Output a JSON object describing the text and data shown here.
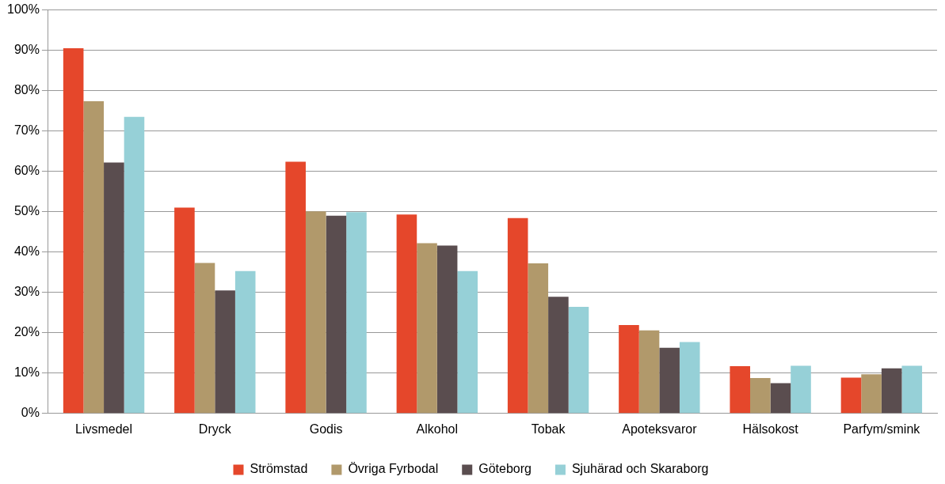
{
  "chart_data": {
    "type": "bar",
    "categories": [
      "Livsmedel",
      "Dryck",
      "Godis",
      "Alkohol",
      "Tobak",
      "Apoteksvaror",
      "Hälsokost",
      "Parfym/smink"
    ],
    "series": [
      {
        "name": "Strömstad",
        "color": "#e5472b",
        "values": [
          90.5,
          51.0,
          62.4,
          49.3,
          48.4,
          21.9,
          11.7,
          8.9
        ]
      },
      {
        "name": "Övriga Fyrbodal",
        "color": "#b1996b",
        "values": [
          77.4,
          37.3,
          50.1,
          42.2,
          37.2,
          20.6,
          8.8,
          9.7
        ]
      },
      {
        "name": "Göteborg",
        "color": "#5a4d4f",
        "values": [
          62.2,
          30.5,
          49.0,
          41.6,
          28.9,
          16.3,
          7.5,
          11.2
        ]
      },
      {
        "name": "Sjuhärad och Skaraborg",
        "color": "#96d0d7",
        "values": [
          73.5,
          35.3,
          49.9,
          35.3,
          26.4,
          17.7,
          11.8,
          11.8
        ]
      }
    ],
    "ylim": [
      0,
      100
    ],
    "yticks": [
      {
        "value": 0,
        "label": "0%"
      },
      {
        "value": 10,
        "label": "10%"
      },
      {
        "value": 20,
        "label": "20%"
      },
      {
        "value": 30,
        "label": "30%"
      },
      {
        "value": 40,
        "label": "40%"
      },
      {
        "value": 50,
        "label": "50%"
      },
      {
        "value": 60,
        "label": "60%"
      },
      {
        "value": 70,
        "label": "70%"
      },
      {
        "value": 80,
        "label": "80%"
      },
      {
        "value": 90,
        "label": "90%"
      },
      {
        "value": 100,
        "label": "100%"
      }
    ],
    "grid": "y",
    "legend": "bottom"
  }
}
